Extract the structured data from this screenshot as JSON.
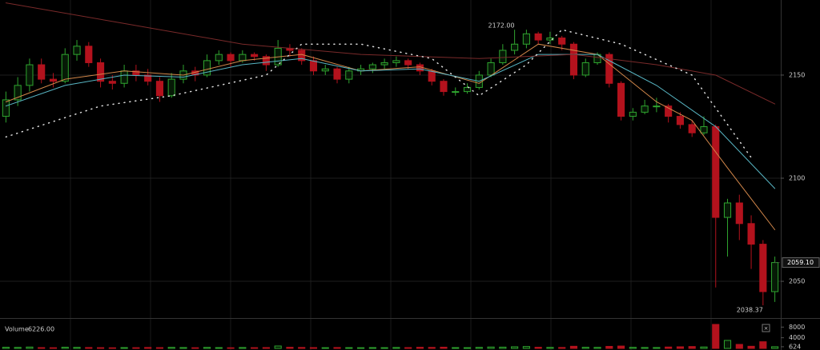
{
  "chart_data": {
    "type": "candlestick",
    "open": [
      2130,
      2138,
      2145,
      2155,
      2148,
      2147,
      2160,
      2164,
      2156,
      2147,
      2146,
      2152,
      2150,
      2147,
      2140,
      2148,
      2152,
      2150,
      2157,
      2160,
      2157,
      2160,
      2159,
      2155,
      2163,
      2162,
      2157,
      2152,
      2153,
      2148,
      2152,
      2153,
      2155,
      2156,
      2157,
      2155,
      2152,
      2147,
      2142,
      2142,
      2144,
      2150,
      2156,
      2162,
      2165,
      2170,
      2167,
      2168,
      2165,
      2150,
      2156,
      2160,
      2146,
      2130,
      2132,
      2135,
      2135,
      2130,
      2126,
      2122,
      2125,
      2081,
      2088,
      2078,
      2068,
      2045
    ],
    "high": [
      2142,
      2149,
      2158,
      2158,
      2151,
      2163,
      2167,
      2166,
      2158,
      2150,
      2155,
      2155,
      2153,
      2149,
      2151,
      2155,
      2154,
      2160,
      2162,
      2161,
      2162,
      2161,
      2160,
      2167,
      2165,
      2163,
      2159,
      2155,
      2154,
      2154,
      2155,
      2156,
      2158,
      2159,
      2158,
      2156,
      2153,
      2148,
      2144,
      2146,
      2152,
      2158,
      2165,
      2172,
      2172,
      2171,
      2171,
      2169,
      2166,
      2158,
      2161,
      2161,
      2147,
      2134,
      2138,
      2139,
      2136,
      2132,
      2128,
      2130,
      2126,
      2090,
      2092,
      2082,
      2070,
      2062
    ],
    "low": [
      2127,
      2135,
      2142,
      2146,
      2144,
      2146,
      2157,
      2154,
      2144,
      2143,
      2144,
      2147,
      2145,
      2137,
      2139,
      2146,
      2147,
      2149,
      2155,
      2154,
      2156,
      2157,
      2152,
      2154,
      2159,
      2155,
      2150,
      2150,
      2146,
      2146,
      2150,
      2151,
      2153,
      2154,
      2153,
      2150,
      2145,
      2140,
      2140,
      2141,
      2143,
      2149,
      2155,
      2160,
      2163,
      2165,
      2165,
      2162,
      2148,
      2149,
      2155,
      2144,
      2128,
      2128,
      2131,
      2132,
      2127,
      2124,
      2120,
      2121,
      2047,
      2062,
      2070,
      2056,
      2038.37,
      2040
    ],
    "close": [
      2138,
      2145,
      2155,
      2148,
      2147,
      2160,
      2164,
      2156,
      2147,
      2146,
      2152,
      2150,
      2147,
      2140,
      2148,
      2152,
      2150,
      2157,
      2160,
      2157,
      2160,
      2159,
      2155,
      2163,
      2162,
      2157,
      2152,
      2153,
      2148,
      2152,
      2153,
      2155,
      2156,
      2157,
      2155,
      2152,
      2147,
      2142,
      2142,
      2144,
      2150,
      2156,
      2162,
      2165,
      2170,
      2167,
      2168,
      2165,
      2150,
      2156,
      2160,
      2146,
      2130,
      2132,
      2135,
      2135,
      2130,
      2126,
      2122,
      2125,
      2081,
      2088,
      2078,
      2068,
      2045,
      2059.1
    ],
    "volume": [
      420,
      380,
      510,
      300,
      260,
      450,
      390,
      330,
      280,
      240,
      310,
      270,
      350,
      290,
      400,
      330,
      260,
      380,
      300,
      250,
      340,
      280,
      310,
      900,
      420,
      360,
      300,
      270,
      330,
      290,
      260,
      310,
      280,
      350,
      300,
      420,
      380,
      460,
      300,
      280,
      390,
      520,
      480,
      610,
      700,
      430,
      380,
      350,
      800,
      420,
      390,
      760,
      880,
      400,
      350,
      330,
      520,
      600,
      700,
      540,
      9000,
      3000,
      1500,
      800,
      2500,
      624
    ],
    "ylim": [
      2032.2,
      2186.4
    ],
    "yticks": [
      2050,
      2100,
      2150
    ],
    "volume_lim": [
      0,
      10800
    ],
    "volume_ticks": [
      4000,
      8000,
      624
    ],
    "volume_title": "Volume",
    "volume_readout": {
      "value": 6226,
      "label": "6226.00"
    },
    "last_price": {
      "value": 2059.1,
      "label": "2059.10"
    },
    "annotations": [
      {
        "index": 43,
        "value": 2172,
        "label": "2172.00"
      },
      {
        "index": 64,
        "value": 2038.37,
        "label": "2038.37"
      }
    ],
    "up_color": "#2fa52f",
    "down_color": "#b3121d",
    "lines": [
      {
        "color": "#d2874a",
        "dashed": false,
        "x": [
          0,
          5,
          10,
          15,
          20,
          25,
          30,
          35,
          40,
          45,
          50,
          55,
          58,
          61,
          65
        ],
        "values": [
          2137,
          2148,
          2152,
          2150,
          2157,
          2160,
          2152,
          2154,
          2146,
          2165,
          2160,
          2137,
          2128,
          2105,
          2075
        ]
      },
      {
        "color": "#58b6c4",
        "dashed": false,
        "x": [
          0,
          5,
          10,
          15,
          20,
          25,
          30,
          35,
          40,
          45,
          50,
          55,
          60,
          65
        ],
        "values": [
          2135,
          2145,
          2150,
          2149,
          2155,
          2158,
          2152,
          2153,
          2147,
          2160,
          2160,
          2145,
          2125,
          2095
        ]
      },
      {
        "color": "#7a2a2a",
        "dashed": false,
        "x": [
          0,
          10,
          20,
          30,
          40,
          48,
          55,
          60,
          65
        ],
        "values": [
          2185,
          2175,
          2165,
          2160,
          2158,
          2160,
          2155,
          2150,
          2136
        ]
      },
      {
        "color": "#dddddd",
        "dashed": true,
        "x": [
          0,
          8,
          14,
          18,
          22,
          25,
          30,
          36,
          40,
          44,
          47,
          52,
          58,
          63
        ],
        "values": [
          2120,
          2135,
          2140,
          2145,
          2150,
          2165,
          2165,
          2158,
          2140,
          2155,
          2172,
          2165,
          2150,
          2110
        ]
      }
    ]
  }
}
